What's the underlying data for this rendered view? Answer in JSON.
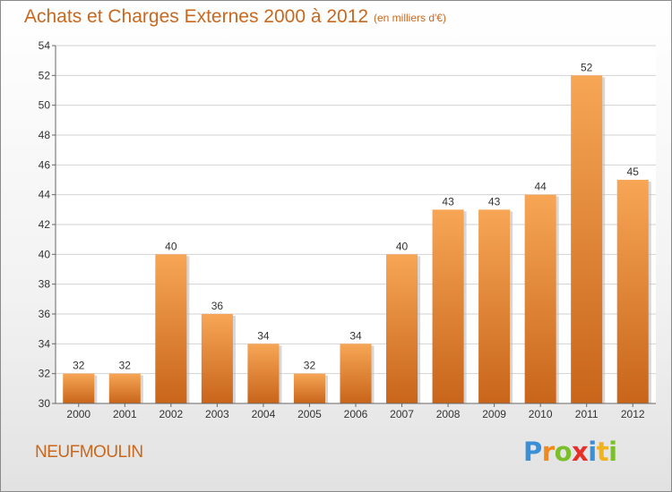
{
  "chart_data": {
    "type": "bar",
    "title": "Achats et Charges Externes 2000 à 2012",
    "subtitle": "(en milliers d'€)",
    "categories": [
      "2000",
      "2001",
      "2002",
      "2003",
      "2004",
      "2005",
      "2006",
      "2007",
      "2008",
      "2009",
      "2010",
      "2011",
      "2012"
    ],
    "values": [
      32,
      32,
      40,
      36,
      34,
      32,
      34,
      40,
      43,
      43,
      44,
      52,
      45
    ],
    "data_labels": [
      "32",
      "32",
      "40",
      "36",
      "34",
      "32",
      "34",
      "40",
      "43",
      "43",
      "44",
      "52",
      "45"
    ],
    "ylim": [
      30,
      54
    ],
    "yticks": [
      30,
      32,
      34,
      36,
      38,
      40,
      42,
      44,
      46,
      48,
      50,
      52,
      54
    ],
    "grid": true,
    "xlabel": "",
    "ylabel": "",
    "bar_color_top": "#f7a656",
    "bar_color_bottom": "#c8651a"
  },
  "footer": {
    "place": "NEUFMOULIN",
    "logo_letters": [
      {
        "ch": "P",
        "color": "#3a8fd6"
      },
      {
        "ch": "r",
        "color": "#f08a1c"
      },
      {
        "ch": "o",
        "color": "#7bbf2a"
      },
      {
        "ch": "x",
        "color": "#e8302a"
      },
      {
        "ch": "i",
        "color": "#3a8fd6"
      },
      {
        "ch": "t",
        "color": "#f2b21c"
      },
      {
        "ch": "i",
        "color": "#7bbf2a"
      }
    ]
  }
}
